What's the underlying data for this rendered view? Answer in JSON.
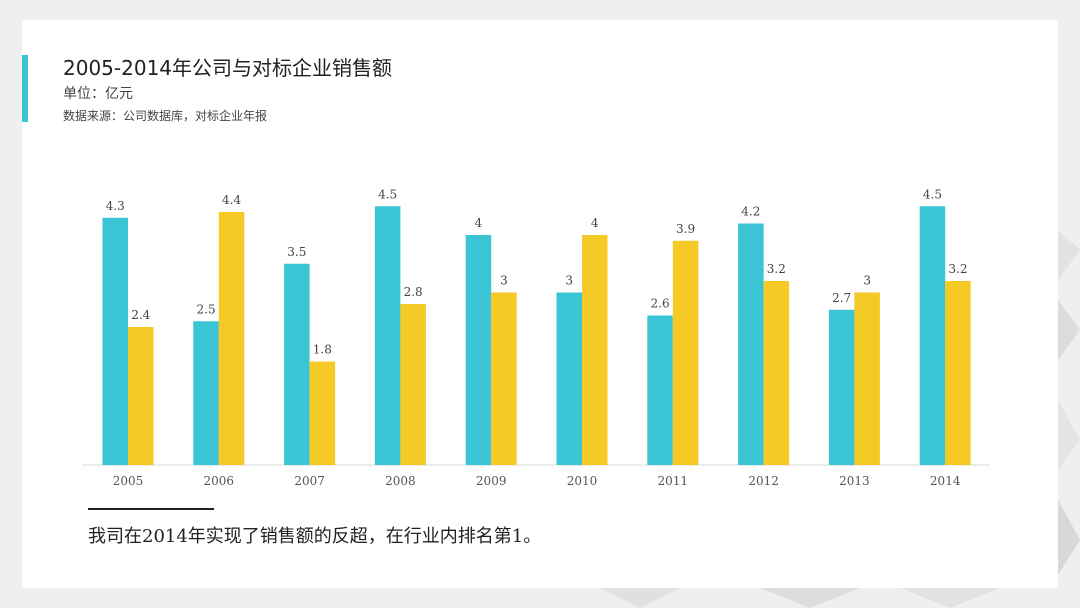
{
  "header": {
    "title": "2005-2014年公司与对标企业销售额",
    "unit": "单位：亿元",
    "source": "数据来源：公司数据库，对标企业年报"
  },
  "note": "我司在2014年实现了销售额的反超，在行业内排名第1。",
  "colors": {
    "accent": "#3bc4d4",
    "company": "#3bc4d4",
    "benchmark": "#f5c926",
    "background": "#efefef"
  },
  "chart_data": {
    "type": "bar",
    "categories": [
      "2005",
      "2006",
      "2007",
      "2008",
      "2009",
      "2010",
      "2011",
      "2012",
      "2013",
      "2014"
    ],
    "series": [
      {
        "values": [
          4.3,
          2.5,
          3.5,
          4.5,
          4,
          3,
          2.6,
          4.2,
          2.7,
          4.5
        ],
        "color": "#3bc4d4"
      },
      {
        "values": [
          2.4,
          4.4,
          1.8,
          2.8,
          3,
          4,
          3.9,
          3.2,
          3,
          3.2
        ],
        "color": "#f5c926"
      }
    ],
    "ylim": [
      0,
      5
    ],
    "grid": false,
    "data_labels": true,
    "legend": "none"
  }
}
